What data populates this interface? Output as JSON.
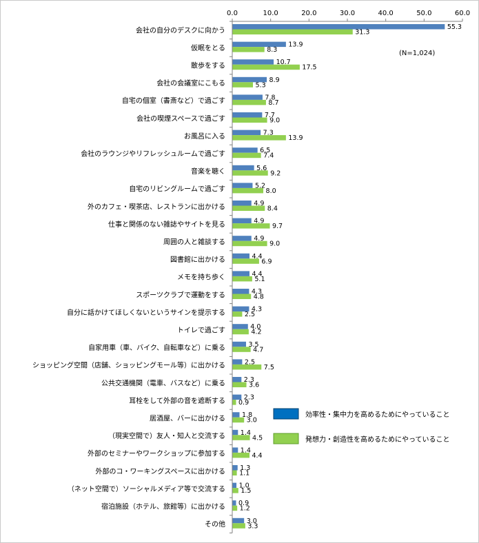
{
  "chart_data": {
    "type": "bar",
    "orientation": "horizontal",
    "note": "(N=1,024)",
    "xlim": [
      0,
      60
    ],
    "xticks": [
      "0.0",
      "10.0",
      "20.0",
      "30.0",
      "40.0",
      "50.0",
      "60.0"
    ],
    "xtick_values": [
      0,
      10,
      20,
      30,
      40,
      50,
      60
    ],
    "grid": false,
    "legend_position": "right",
    "categories": [
      "会社の自分のデスクに向かう",
      "仮眠をとる",
      "散歩をする",
      "会社の会議室にこもる",
      "自宅の個室（書斎など）で過ごす",
      "会社の喫煙スペースで過ごす",
      "お風呂に入る",
      "会社のラウンジやリフレッシュルームで過ごす",
      "音楽を聴く",
      "自宅のリビングルームで過ごす",
      "外のカフェ・喫茶店、レストランに出かける",
      "仕事と関係のない雑誌やサイトを見る",
      "周囲の人と雑談する",
      "図書館に出かける",
      "メモを持ち歩く",
      "スポーツクラブで運動をする",
      "自分に話かけてほしくないというサインを提示する",
      "トイレで過ごす",
      "自家用車（車、バイク、自転車など）に乗る",
      "ショッピング空間（店舗、ショッピングモール等）に出かける",
      "公共交通機関（電車、バスなど）に乗る",
      "耳栓をして外部の音を遮断する",
      "居酒屋、バーに出かける",
      "（現実空間で）友人・知人と交流する",
      "外部のセミナーやワークショップに参加する",
      "外部のコ・ワーキングスペースに出かける",
      "（ネット空間で）ソーシャルメディア等で交流する",
      "宿泊施設（ホテル、旅館等）に出かける",
      "その他"
    ],
    "series": [
      {
        "name": "効率性・集中力を高めるためにやっていること",
        "color": "#4f81bd",
        "values": [
          55.3,
          13.9,
          10.7,
          8.9,
          7.8,
          7.7,
          7.3,
          6.5,
          5.6,
          5.2,
          4.9,
          4.9,
          4.9,
          4.4,
          4.4,
          4.3,
          4.3,
          4.0,
          3.5,
          2.5,
          2.3,
          2.3,
          1.8,
          1.4,
          1.4,
          1.3,
          1.0,
          0.9,
          3.0
        ]
      },
      {
        "name": "発想力・創造性を高めるためにやっていること",
        "color": "#92d050",
        "values": [
          31.3,
          8.3,
          17.5,
          5.3,
          8.7,
          9.0,
          13.9,
          7.4,
          9.2,
          8.0,
          8.4,
          9.7,
          9.0,
          6.9,
          5.1,
          4.8,
          2.5,
          4.2,
          4.7,
          7.5,
          3.6,
          0.9,
          3.0,
          4.5,
          4.4,
          1.1,
          1.5,
          1.2,
          3.3
        ]
      }
    ]
  }
}
